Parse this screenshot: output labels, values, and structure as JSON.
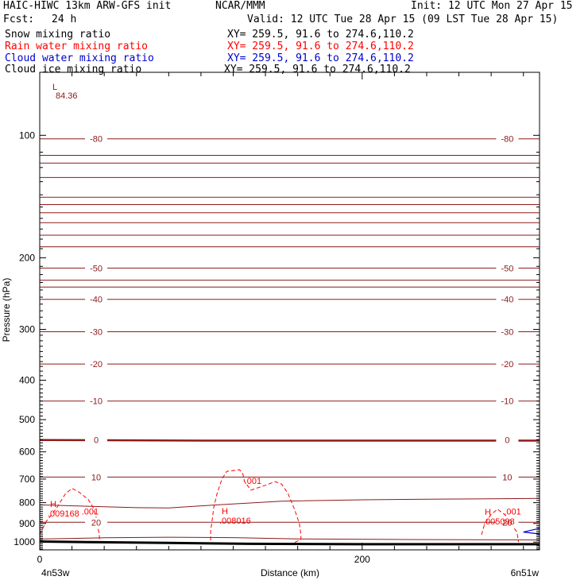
{
  "header": {
    "title_left": "HAIC-HIWC 13km ARW-GFS init",
    "title_mid": "NCAR/MMM",
    "init_label": "Init: 12 UTC Mon 27 Apr 15",
    "fcst_label": "Fcst:",
    "fcst_value": "24 h",
    "valid_label": "Valid: 12 UTC Tue 28 Apr 15 (09 LST Tue 28 Apr 15)"
  },
  "legend": [
    {
      "label": "Snow mixing ratio",
      "xy": "XY= 259.5, 91.6 to 274.6,110.2",
      "color": "#000000"
    },
    {
      "label": "Rain water mixing ratio",
      "xy": "XY= 259.5, 91.6 to 274.6,110.2",
      "color": "#ff0000"
    },
    {
      "label": "Cloud water mixing ratio",
      "xy": "XY= 259.5, 91.6 to 274.6,110.2",
      "color": "#0000cc"
    },
    {
      "label": "Cloud ice mixing ratio",
      "xy": "XY= 259.5, 91.6 to 274.6,110.2",
      "color": "#000000"
    }
  ],
  "chart_data": {
    "type": "line",
    "title": "HAIC-HIWC 13km ARW-GFS init",
    "xlabel": "Distance (km)",
    "ylabel": "Pressure (hPa)",
    "xlim": [
      0,
      310
    ],
    "ylim": [
      1045,
      70
    ],
    "y_scale": "log",
    "x_ticks": [
      0,
      200
    ],
    "x_tick_labels": [
      "0",
      "200"
    ],
    "y_ticks": [
      100,
      200,
      300,
      400,
      500,
      600,
      700,
      800,
      900,
      1000
    ],
    "x_end_labels": [
      "4n53w",
      "6n51w"
    ],
    "temperature_contours": [
      {
        "label": "-80",
        "points": [
          [
            0,
            102
          ],
          [
            310,
            102
          ]
        ]
      },
      {
        "label": "-50",
        "points": [
          [
            0,
            212
          ],
          [
            310,
            212
          ]
        ]
      },
      {
        "label": "-40",
        "points": [
          [
            0,
            253
          ],
          [
            310,
            253
          ]
        ]
      },
      {
        "label": "-30",
        "points": [
          [
            0,
            304
          ],
          [
            310,
            304
          ]
        ]
      },
      {
        "label": "-20",
        "points": [
          [
            0,
            365
          ],
          [
            310,
            365
          ]
        ]
      },
      {
        "label": "-10",
        "points": [
          [
            0,
            450
          ],
          [
            310,
            450
          ]
        ]
      },
      {
        "label": "0",
        "points": [
          [
            0,
            561
          ],
          [
            100,
            563
          ],
          [
            200,
            563
          ],
          [
            310,
            563
          ]
        ]
      },
      {
        "label": "10",
        "points": [
          [
            0,
            692
          ],
          [
            310,
            692
          ]
        ]
      },
      {
        "label": "",
        "points": [
          [
            0,
            810
          ],
          [
            60,
            823
          ],
          [
            80,
            824
          ],
          [
            110,
            810
          ],
          [
            150,
            793
          ],
          [
            200,
            787
          ],
          [
            250,
            784
          ],
          [
            310,
            781
          ]
        ]
      },
      {
        "label": "20",
        "points": [
          [
            0,
            894
          ],
          [
            310,
            894
          ]
        ]
      },
      {
        "label": "",
        "points": [
          [
            0,
            983
          ],
          [
            40,
            976
          ],
          [
            80,
            973
          ],
          [
            120,
            975
          ],
          [
            160,
            982
          ],
          [
            220,
            985
          ],
          [
            310,
            988
          ]
        ]
      }
    ],
    "unlabeled_contour_levels_hpa": [
      112,
      117,
      127,
      142,
      148,
      155,
      164,
      176,
      188,
      227,
      236
    ],
    "rain_mixing_contours": [
      {
        "label": ".001",
        "points": [
          [
            0,
            958
          ],
          [
            4,
            890
          ],
          [
            10,
            830
          ],
          [
            16,
            760
          ],
          [
            20,
            738
          ],
          [
            24,
            752
          ],
          [
            30,
            785
          ],
          [
            33,
            820
          ],
          [
            35,
            868
          ],
          [
            36,
            915
          ],
          [
            37,
            960
          ],
          [
            37,
            990
          ]
        ]
      },
      {
        "label": ".001",
        "points": [
          [
            106,
            990
          ],
          [
            106,
            940
          ],
          [
            107,
            880
          ],
          [
            108,
            820
          ],
          [
            110,
            760
          ],
          [
            113,
            700
          ],
          [
            116,
            670
          ],
          [
            124,
            664
          ],
          [
            126,
            680
          ],
          [
            127,
            710
          ],
          [
            131,
            745
          ],
          [
            140,
            725
          ],
          [
            146,
            710
          ],
          [
            150,
            720
          ],
          [
            154,
            760
          ],
          [
            158,
            830
          ],
          [
            161,
            900
          ],
          [
            162,
            958
          ],
          [
            162,
            985
          ],
          [
            158,
            1002
          ]
        ]
      },
      {
        "label": ".001",
        "points": [
          [
            274,
            960
          ],
          [
            276,
            900
          ],
          [
            280,
            855
          ],
          [
            284,
            830
          ],
          [
            289,
            860
          ],
          [
            292,
            900
          ],
          [
            296,
            945
          ],
          [
            297,
            1000
          ]
        ]
      }
    ],
    "cloud_water_contours": [
      {
        "points": [
          [
            310,
            925
          ],
          [
            300,
            945
          ],
          [
            310,
            955
          ]
        ]
      }
    ],
    "extrema": [
      {
        "type": "L",
        "value": "84.36"
      },
      {
        "type": "H",
        "value": ".009168"
      },
      {
        "type": "H",
        "value": ".008016"
      },
      {
        "type": "H",
        "value": ".005098"
      }
    ],
    "terrain": {
      "points": [
        [
          0,
          997
        ],
        [
          30,
          1000
        ],
        [
          80,
          1005
        ],
        [
          130,
          1010
        ],
        [
          200,
          1012
        ],
        [
          310,
          1012
        ]
      ]
    }
  }
}
